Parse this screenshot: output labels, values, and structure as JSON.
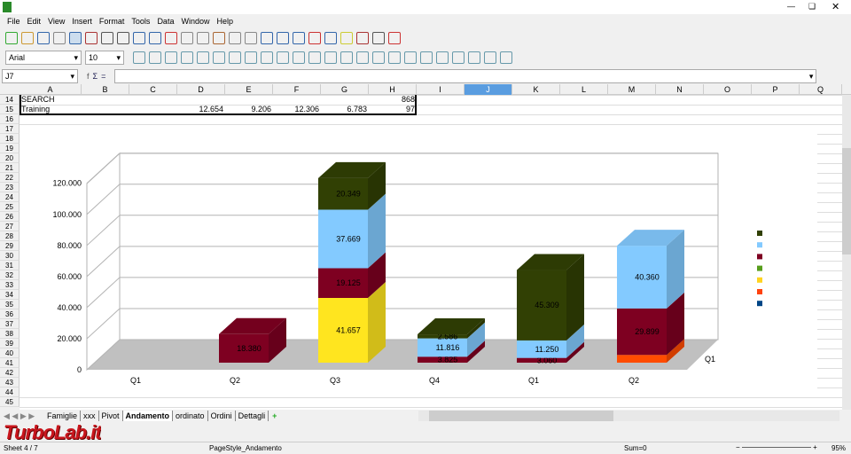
{
  "menu": [
    "File",
    "Edit",
    "View",
    "Insert",
    "Format",
    "Tools",
    "Data",
    "Window",
    "Help"
  ],
  "toolbar": {
    "font_name": "Arial",
    "font_size": "10"
  },
  "formula": {
    "cell_ref": "J7",
    "value": ""
  },
  "columns": [
    "A",
    "B",
    "C",
    "D",
    "E",
    "F",
    "G",
    "H",
    "I",
    "J",
    "K",
    "L",
    "M",
    "N",
    "O",
    "P",
    "Q"
  ],
  "selected_column": "J",
  "rows": [
    "14",
    "15",
    "16",
    "17",
    "18",
    "19",
    "20",
    "21",
    "22",
    "23",
    "24",
    "25",
    "26",
    "27",
    "28",
    "29",
    "30",
    "31",
    "32",
    "33",
    "34",
    "35",
    "36",
    "37",
    "38",
    "39",
    "40",
    "41",
    "42",
    "43",
    "44",
    "45"
  ],
  "cells": {
    "A14": "SEARCH",
    "H14": "868",
    "A15": "Training",
    "D15": "12.654",
    "E15": "9.206",
    "F15": "12.306",
    "G15": "6.783",
    "H15": "97"
  },
  "chart_data": {
    "type": "bar",
    "stacked": true,
    "three_d": true,
    "categories": [
      "Q1",
      "Q2",
      "Q3",
      "Q4",
      "Q1",
      "Q2"
    ],
    "depth_label": "Q1",
    "yticks": [
      "0",
      "20.000",
      "40.000",
      "60.000",
      "80.000",
      "100.000",
      "120.000"
    ],
    "ylim": [
      0,
      120000
    ],
    "series": [
      {
        "color": "#ff4c00",
        "values": [
          0,
          0,
          0,
          0,
          0,
          5000
        ]
      },
      {
        "color": "#ffe51f",
        "values": [
          0,
          0,
          41657,
          0,
          0,
          0
        ]
      },
      {
        "color": "#7e0021",
        "values": [
          0,
          18380,
          19125,
          3825,
          3060,
          29899
        ]
      },
      {
        "color": "#83caff",
        "values": [
          0,
          0,
          37669,
          11816,
          11250,
          40360
        ]
      },
      {
        "color": "#314004",
        "values": [
          0,
          0,
          20349,
          2586,
          45309,
          0
        ]
      }
    ],
    "labels": [
      [
        null,
        null,
        null,
        null,
        null,
        null
      ],
      [
        null,
        null,
        "41.657",
        null,
        null,
        null
      ],
      [
        null,
        "18.380",
        "19.125",
        "3.825",
        "3.060",
        "29.899"
      ],
      [
        null,
        null,
        "37.669",
        "11.816",
        "11.250",
        "40.360"
      ],
      [
        null,
        null,
        "20.349",
        "2.586",
        "45.309",
        null
      ]
    ],
    "legend_colors": [
      "#314004",
      "#83caff",
      "#7e0021",
      "#579d1c",
      "#ffd320",
      "#ff420e",
      "#004586"
    ]
  },
  "sheets": [
    "Famiglie",
    "xxx",
    "Pivot",
    "Andamento",
    "ordinato",
    "Ordini",
    "Dettagli"
  ],
  "active_sheet": "Andamento",
  "status": {
    "sheet": "Sheet 4 / 7",
    "page_style": "PageStyle_Andamento",
    "sum": "Sum=0",
    "zoom": "95%"
  },
  "watermark": "TurboLab.it"
}
